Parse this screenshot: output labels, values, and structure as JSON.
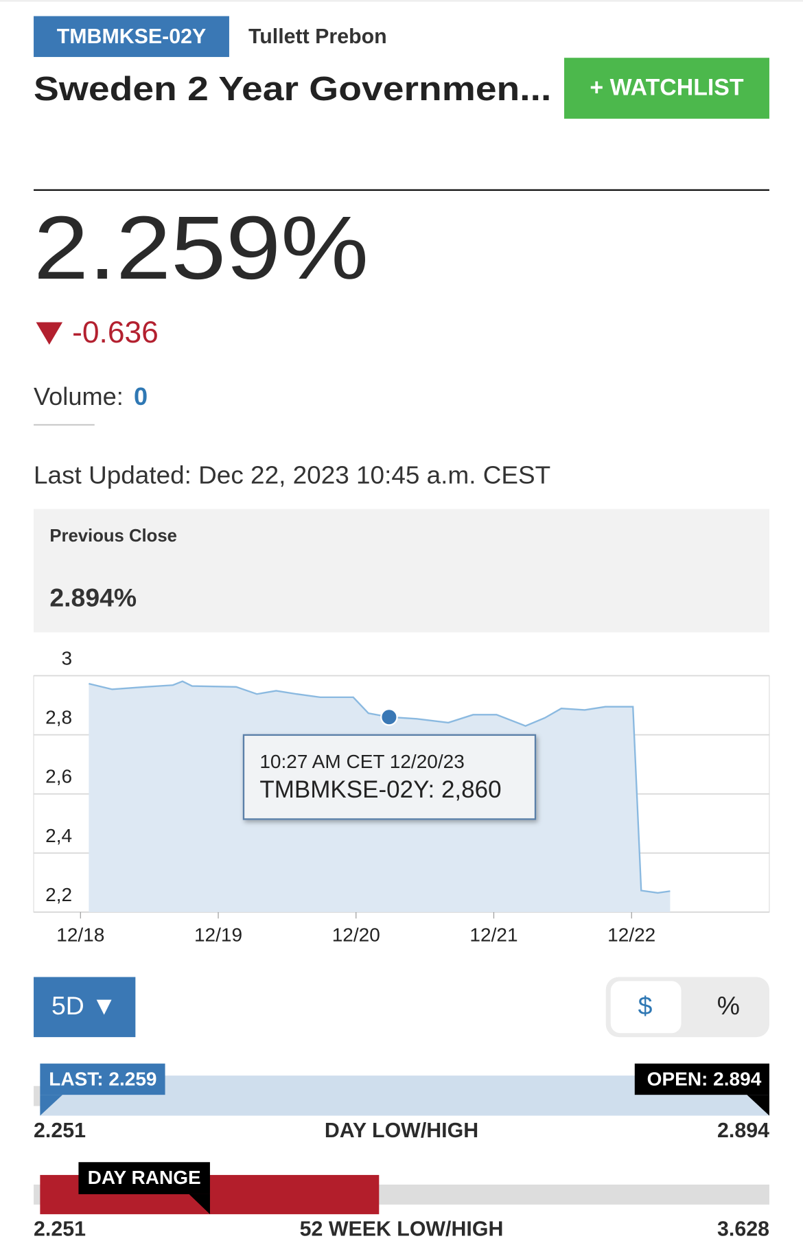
{
  "header": {
    "ticker": "TMBMKSE-02Y",
    "source": "Tullett Prebon",
    "title": "Sweden 2 Year Governmen...",
    "watchlist_button": "+ WATCHLIST"
  },
  "price": "2.259%",
  "change": "-0.636",
  "volume": {
    "label": "Volume:",
    "value": "0"
  },
  "last_updated": "Last Updated: Dec 22, 2023 10:45 a.m. CEST",
  "previous_close": {
    "label": "Previous Close",
    "value": "2.894%"
  },
  "chart_data": {
    "type": "line",
    "x": [
      0.06,
      0.23,
      0.47,
      0.67,
      0.74,
      0.81,
      1.13,
      1.28,
      1.42,
      1.57,
      1.74,
      1.98,
      2.09,
      2.24,
      2.44,
      2.67,
      2.85,
      3.02,
      3.23,
      3.37,
      3.49,
      3.66,
      3.81,
      4.01,
      4.07,
      4.19,
      4.28
    ],
    "values": [
      2.973,
      2.954,
      2.962,
      2.968,
      2.981,
      2.965,
      2.962,
      2.938,
      2.949,
      2.938,
      2.927,
      2.927,
      2.873,
      2.86,
      2.854,
      2.841,
      2.868,
      2.868,
      2.83,
      2.857,
      2.889,
      2.884,
      2.895,
      2.895,
      2.273,
      2.265,
      2.271
    ],
    "color": "#8ab9e0",
    "xlim": [
      -0.34,
      5.0
    ],
    "xticks": [
      {
        "value": 0,
        "label": "12/18"
      },
      {
        "value": 1,
        "label": "12/19"
      },
      {
        "value": 2,
        "label": "12/20"
      },
      {
        "value": 3,
        "label": "12/21"
      },
      {
        "value": 4,
        "label": "12/22"
      }
    ],
    "ylim": [
      2.2,
      3
    ],
    "yticks": [
      {
        "value": 2.2,
        "label": "2,2"
      },
      {
        "value": 2.4,
        "label": "2,4"
      },
      {
        "value": 2.6,
        "label": "2,6"
      },
      {
        "value": 2.8,
        "label": "2,8"
      },
      3
    ],
    "grid": true,
    "tooltip": {
      "time": "10:27 AM CET 12/20/23",
      "text": "TMBMKSE-02Y: 2,860"
    }
  },
  "controls": {
    "range": "5D ▼",
    "currency": "$",
    "percent": "%"
  },
  "day_range": {
    "last": "LAST: 2.259",
    "open": "OPEN: 2.894",
    "low": "2.251",
    "label": "DAY LOW/HIGH",
    "high": "2.894"
  },
  "week52_range": {
    "marker": "DAY RANGE",
    "low": "2.251",
    "label": "52 WEEK LOW/HIGH",
    "high": "3.628"
  }
}
